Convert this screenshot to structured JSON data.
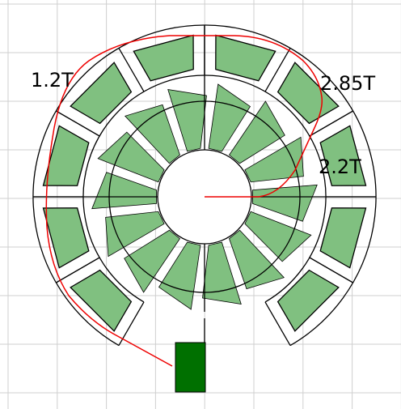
{
  "labels": [
    "1.2T",
    "2.85T",
    "2.2T"
  ]
}
